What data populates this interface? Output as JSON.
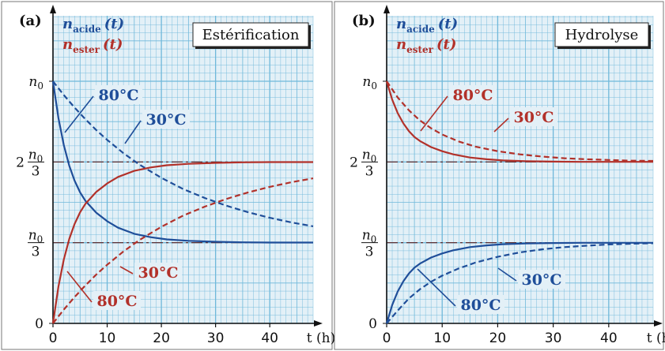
{
  "colors": {
    "acide": "#1f4e99",
    "ester": "#b2312a",
    "paper": "#e3f0f7",
    "grid": "#6fb8da",
    "refline": "#5a1f1f"
  },
  "chart_data": [
    {
      "type": "line",
      "panel": "(a)",
      "title": "Estérification",
      "legend": {
        "placement": "top-left",
        "acide": [
          "n",
          "acide",
          "(t)"
        ],
        "ester": [
          "n",
          "ester",
          "(t)"
        ]
      },
      "xlabel": "t (h)",
      "x_ticks": [
        "0",
        "10",
        "20",
        "30",
        "40"
      ],
      "y_ticks": {
        "zero": "0",
        "n0": "n0",
        "two_thirds": [
          "2",
          "n0",
          "3"
        ],
        "one_third": [
          "n0",
          "3"
        ]
      },
      "xlim": [
        0,
        48
      ],
      "ylim": [
        0,
        1.05
      ],
      "reference_lines": [
        0.3333,
        0.6667
      ],
      "series": [
        {
          "name": "80°C",
          "kind": "acide",
          "style": "solid",
          "x": [
            0,
            1,
            2,
            3,
            4,
            5,
            6,
            8,
            10,
            12,
            15,
            18,
            21,
            25,
            30,
            35,
            40,
            45,
            48
          ],
          "y": [
            1.0,
            0.848,
            0.736,
            0.651,
            0.589,
            0.541,
            0.506,
            0.457,
            0.422,
            0.395,
            0.37,
            0.356,
            0.347,
            0.341,
            0.337,
            0.335,
            0.334,
            0.334,
            0.334
          ]
        },
        {
          "name": "30°C",
          "kind": "acide",
          "style": "dashed",
          "x": [
            0,
            2,
            4,
            6,
            8,
            10,
            13,
            16,
            20,
            24,
            28,
            32,
            36,
            40,
            44,
            48
          ],
          "y": [
            1.0,
            0.943,
            0.891,
            0.843,
            0.798,
            0.758,
            0.703,
            0.655,
            0.601,
            0.555,
            0.518,
            0.486,
            0.459,
            0.436,
            0.417,
            0.401
          ]
        },
        {
          "name": "80°C",
          "kind": "ester",
          "style": "solid",
          "x": [
            0,
            1,
            2,
            3,
            4,
            5,
            6,
            8,
            10,
            12,
            15,
            18,
            21,
            25,
            30,
            35,
            40,
            45,
            48
          ],
          "y": [
            0,
            0.152,
            0.264,
            0.349,
            0.411,
            0.459,
            0.494,
            0.543,
            0.578,
            0.605,
            0.63,
            0.644,
            0.653,
            0.659,
            0.663,
            0.665,
            0.666,
            0.666,
            0.666
          ]
        },
        {
          "name": "30°C",
          "kind": "ester",
          "style": "dashed",
          "x": [
            0,
            2,
            4,
            6,
            8,
            10,
            13,
            16,
            20,
            24,
            28,
            32,
            36,
            40,
            44,
            48
          ],
          "y": [
            0,
            0.057,
            0.109,
            0.157,
            0.202,
            0.242,
            0.297,
            0.345,
            0.399,
            0.445,
            0.482,
            0.514,
            0.541,
            0.564,
            0.583,
            0.599
          ]
        }
      ],
      "annotations": [
        {
          "text": "80°C",
          "kind": "acide"
        },
        {
          "text": "30°C",
          "kind": "acide"
        },
        {
          "text": "30°C",
          "kind": "ester"
        },
        {
          "text": "80°C",
          "kind": "ester"
        }
      ]
    },
    {
      "type": "line",
      "panel": "(b)",
      "title": "Hydrolyse",
      "legend": {
        "placement": "top-left",
        "acide": [
          "n",
          "acide",
          "(t)"
        ],
        "ester": [
          "n",
          "ester",
          "(t)"
        ]
      },
      "xlabel": "t (h)",
      "x_ticks": [
        "0",
        "10",
        "20",
        "30",
        "40"
      ],
      "y_ticks": {
        "zero": "0",
        "n0": "n0",
        "two_thirds": [
          "2",
          "n0",
          "3"
        ],
        "one_third": [
          "n0",
          "3"
        ]
      },
      "xlim": [
        0,
        48
      ],
      "ylim": [
        0,
        1.05
      ],
      "reference_lines": [
        0.3333,
        0.6667
      ],
      "series": [
        {
          "name": "80°C",
          "kind": "ester",
          "style": "solid",
          "x": [
            0,
            1,
            2,
            3,
            4,
            5,
            6,
            8,
            10,
            12,
            15,
            18,
            21,
            25,
            30,
            35,
            40,
            45,
            48
          ],
          "y": [
            1.0,
            0.924,
            0.868,
            0.826,
            0.794,
            0.77,
            0.753,
            0.728,
            0.711,
            0.698,
            0.685,
            0.678,
            0.673,
            0.67,
            0.668,
            0.667,
            0.667,
            0.667,
            0.667
          ]
        },
        {
          "name": "30°C",
          "kind": "ester",
          "style": "dashed",
          "x": [
            0,
            2,
            4,
            6,
            8,
            10,
            13,
            16,
            20,
            24,
            28,
            32,
            36,
            40,
            44,
            48
          ],
          "y": [
            1.0,
            0.933,
            0.88,
            0.838,
            0.806,
            0.78,
            0.751,
            0.73,
            0.711,
            0.698,
            0.689,
            0.682,
            0.678,
            0.675,
            0.672,
            0.671
          ]
        },
        {
          "name": "80°C",
          "kind": "acide",
          "style": "solid",
          "x": [
            0,
            1,
            2,
            3,
            4,
            5,
            6,
            8,
            10,
            12,
            15,
            18,
            21,
            25,
            30,
            35,
            40,
            45,
            48
          ],
          "y": [
            0,
            0.076,
            0.132,
            0.174,
            0.206,
            0.23,
            0.247,
            0.272,
            0.289,
            0.302,
            0.315,
            0.322,
            0.327,
            0.33,
            0.332,
            0.333,
            0.333,
            0.333,
            0.333
          ]
        },
        {
          "name": "30°C",
          "kind": "acide",
          "style": "dashed",
          "x": [
            0,
            2,
            4,
            6,
            8,
            10,
            13,
            16,
            20,
            24,
            28,
            32,
            36,
            40,
            44,
            48
          ],
          "y": [
            0,
            0.053,
            0.103,
            0.141,
            0.172,
            0.197,
            0.227,
            0.251,
            0.275,
            0.293,
            0.306,
            0.315,
            0.321,
            0.326,
            0.329,
            0.331
          ]
        }
      ],
      "annotations": [
        {
          "text": "80°C",
          "kind": "ester"
        },
        {
          "text": "30°C",
          "kind": "ester"
        },
        {
          "text": "30°C",
          "kind": "acide"
        },
        {
          "text": "80°C",
          "kind": "acide"
        }
      ]
    }
  ]
}
